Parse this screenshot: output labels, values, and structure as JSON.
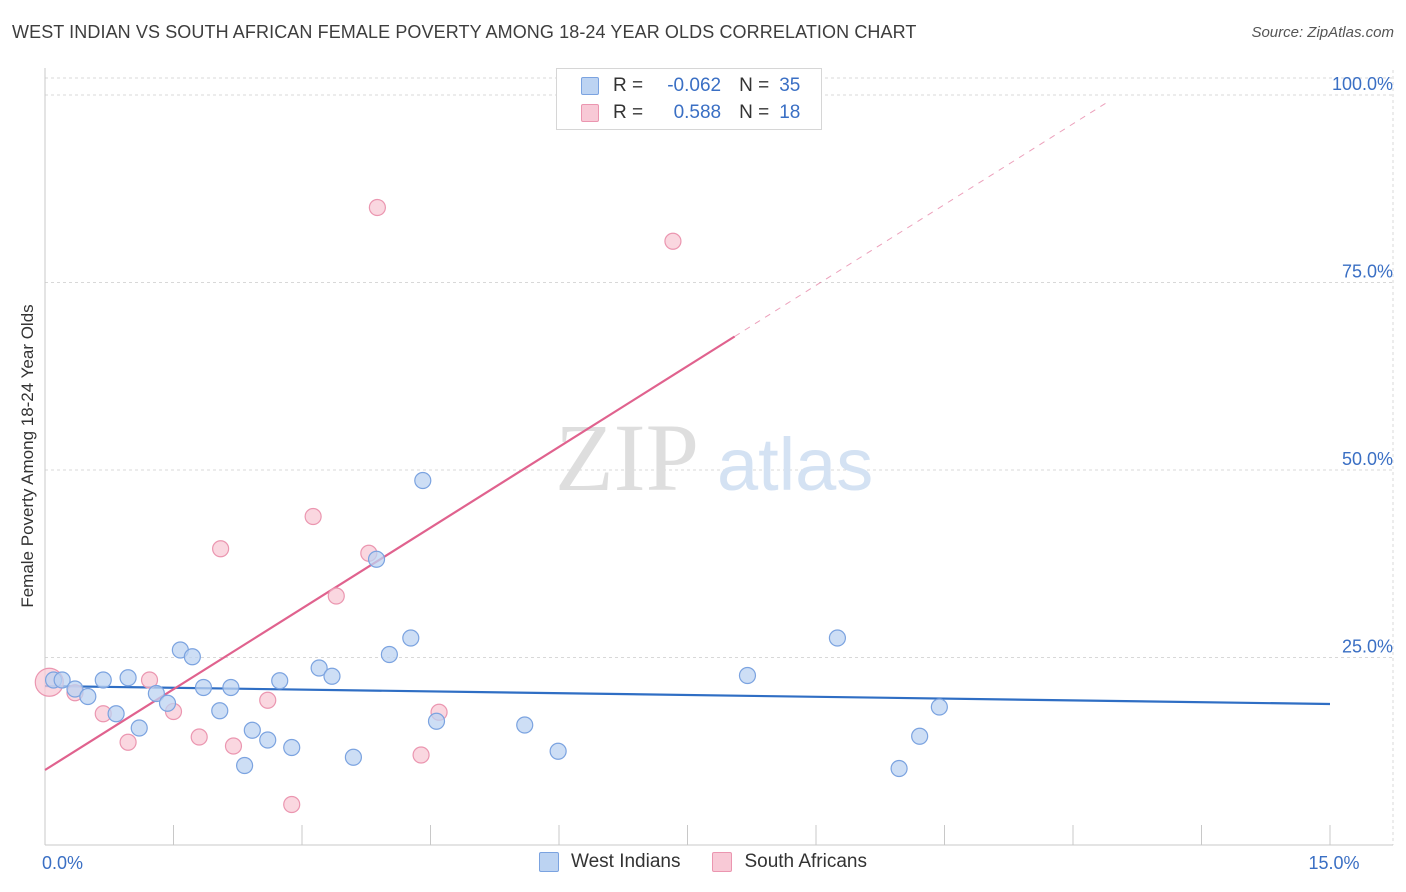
{
  "header": {
    "title": "WEST INDIAN VS SOUTH AFRICAN FEMALE POVERTY AMONG 18-24 YEAR OLDS CORRELATION CHART",
    "source": "Source: ZipAtlas.com"
  },
  "watermark": {
    "zip": "ZIP",
    "atlas": "atlas"
  },
  "legend_top": {
    "rows": [
      {
        "r_label": "R =",
        "r_value": "-0.062",
        "n_label": "N =",
        "n_value": "35"
      },
      {
        "r_label": "R =",
        "r_value": "0.588",
        "n_label": "N =",
        "n_value": "18"
      }
    ]
  },
  "colors": {
    "west_fill": "#bcd3f2",
    "west_stroke": "#7ba3e0",
    "west_line": "#2f6ec4",
    "sa_fill": "#f8c9d6",
    "sa_stroke": "#eb96b0",
    "sa_line": "#e0628e",
    "tick": "#3a6fc4",
    "grid": "#d8d8d8"
  },
  "chart_data": {
    "type": "scatter",
    "title": "WEST INDIAN VS SOUTH AFRICAN FEMALE POVERTY AMONG 18-24 YEAR OLDS CORRELATION CHART",
    "xlabel": "",
    "ylabel": "Female Poverty Among 18-24 Year Olds",
    "xlim": [
      0,
      15
    ],
    "ylim": [
      0,
      102
    ],
    "x_tick_labels": [
      {
        "value": 0,
        "label": "0.0%"
      },
      {
        "value": 15,
        "label": "15.0%"
      }
    ],
    "y_tick_labels": [
      {
        "value": 25,
        "label": "25.0%"
      },
      {
        "value": 50,
        "label": "50.0%"
      },
      {
        "value": 75,
        "label": "75.0%"
      },
      {
        "value": 100,
        "label": "100.0%"
      }
    ],
    "grid": true,
    "legend_position": "bottom",
    "series": [
      {
        "name": "West Indians",
        "r": -0.062,
        "n": 35,
        "trend": {
          "x0": 0.0,
          "y0": 21.2,
          "x1": 15.0,
          "y1": 18.8,
          "dashed_to": 15.0
        },
        "points": [
          [
            0.1,
            22.0
          ],
          [
            0.2,
            22.0
          ],
          [
            0.35,
            20.8
          ],
          [
            0.5,
            19.8
          ],
          [
            0.68,
            22.0
          ],
          [
            0.83,
            17.5
          ],
          [
            0.97,
            22.3
          ],
          [
            1.1,
            15.6
          ],
          [
            1.3,
            20.2
          ],
          [
            1.43,
            18.9
          ],
          [
            1.58,
            26.0
          ],
          [
            1.72,
            25.1
          ],
          [
            1.85,
            21.0
          ],
          [
            2.04,
            17.9
          ],
          [
            2.17,
            21.0
          ],
          [
            2.33,
            10.6
          ],
          [
            2.42,
            15.3
          ],
          [
            2.6,
            14.0
          ],
          [
            2.74,
            21.9
          ],
          [
            2.88,
            13.0
          ],
          [
            3.2,
            23.6
          ],
          [
            3.35,
            22.5
          ],
          [
            3.6,
            11.7
          ],
          [
            3.87,
            38.1
          ],
          [
            4.02,
            25.4
          ],
          [
            4.27,
            27.6
          ],
          [
            4.41,
            48.6
          ],
          [
            4.57,
            16.5
          ],
          [
            5.6,
            16.0
          ],
          [
            5.99,
            12.5
          ],
          [
            8.2,
            22.6
          ],
          [
            9.25,
            27.6
          ],
          [
            9.97,
            10.2
          ],
          [
            10.21,
            14.5
          ],
          [
            10.44,
            18.4
          ]
        ]
      },
      {
        "name": "South Africans",
        "r": 0.588,
        "n": 18,
        "trend": {
          "x0": 0.0,
          "y0": 10.0,
          "x1": 8.05,
          "y1": 67.8,
          "dashed_to": 12.4
        },
        "points": [
          [
            0.05,
            21.7
          ],
          [
            0.35,
            20.3
          ],
          [
            0.68,
            17.5
          ],
          [
            0.97,
            13.7
          ],
          [
            1.22,
            22.0
          ],
          [
            1.5,
            17.8
          ],
          [
            1.8,
            14.4
          ],
          [
            2.05,
            39.5
          ],
          [
            2.2,
            13.2
          ],
          [
            2.6,
            19.3
          ],
          [
            2.88,
            5.4
          ],
          [
            3.13,
            43.8
          ],
          [
            3.4,
            33.2
          ],
          [
            3.78,
            38.9
          ],
          [
            3.88,
            85.0
          ],
          [
            4.39,
            12.0
          ],
          [
            4.6,
            17.7
          ],
          [
            7.33,
            80.5
          ]
        ]
      }
    ]
  }
}
